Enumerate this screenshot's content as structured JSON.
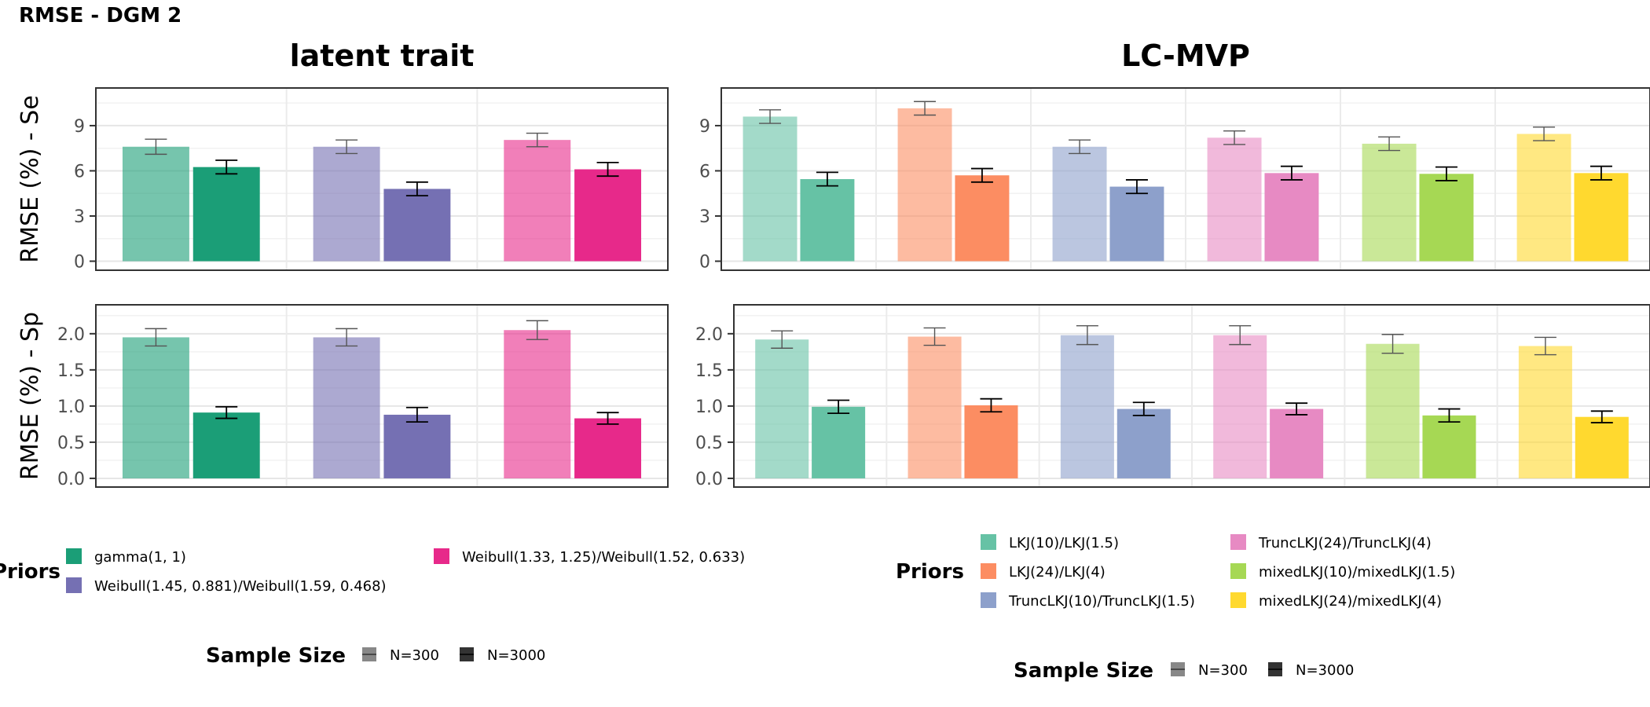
{
  "figure_title": "RMSE - DGM 2",
  "chart_data": [
    {
      "type": "bar",
      "title": "latent trait",
      "ylabel": "RMSE (%) - Se",
      "ylim": [
        -0.6,
        11.5
      ],
      "yticks": [
        "0",
        "3",
        "6",
        "9"
      ],
      "ytick_values": [
        0,
        3,
        6,
        9
      ],
      "series": [
        {
          "name": "gamma(1, 1) N=300",
          "prior": "gamma(1, 1)",
          "sample_size": "N=300",
          "color": "#1B9E77",
          "value": 7.6,
          "err": 0.5
        },
        {
          "name": "gamma(1, 1) N=3000",
          "prior": "gamma(1, 1)",
          "sample_size": "N=3000",
          "color": "#1B9E77",
          "value": 6.25,
          "err": 0.45
        },
        {
          "name": "Weibull(1.45, 0.881)/Weibull(1.59, 0.468) N=300",
          "prior": "Weibull(1.45, 0.881)/Weibull(1.59, 0.468)",
          "sample_size": "N=300",
          "color": "#7570B3",
          "value": 7.6,
          "err": 0.45
        },
        {
          "name": "Weibull(1.45, 0.881)/Weibull(1.59, 0.468) N=3000",
          "prior": "Weibull(1.45, 0.881)/Weibull(1.59, 0.468)",
          "sample_size": "N=3000",
          "color": "#7570B3",
          "value": 4.8,
          "err": 0.45
        },
        {
          "name": "Weibull(1.33, 1.25)/Weibull(1.52, 0.633) N=300",
          "prior": "Weibull(1.33, 1.25)/Weibull(1.52, 0.633)",
          "sample_size": "N=300",
          "color": "#E7298A",
          "value": 8.05,
          "err": 0.45
        },
        {
          "name": "Weibull(1.33, 1.25)/Weibull(1.52, 0.633) N=3000",
          "prior": "Weibull(1.33, 1.25)/Weibull(1.52, 0.633)",
          "sample_size": "N=3000",
          "color": "#E7298A",
          "value": 6.1,
          "err": 0.45
        }
      ]
    },
    {
      "type": "bar",
      "title": "LC-MVP",
      "ylabel": "",
      "ylim": [
        -0.6,
        11.5
      ],
      "yticks": [
        "0",
        "3",
        "6",
        "9"
      ],
      "ytick_values": [
        0,
        3,
        6,
        9
      ],
      "series": [
        {
          "name": "LKJ(10)/LKJ(1.5) N=300",
          "prior": "LKJ(10)/LKJ(1.5)",
          "sample_size": "N=300",
          "color": "#66C2A5",
          "value": 9.6,
          "err": 0.45
        },
        {
          "name": "LKJ(10)/LKJ(1.5) N=3000",
          "prior": "LKJ(10)/LKJ(1.5)",
          "sample_size": "N=3000",
          "color": "#66C2A5",
          "value": 5.45,
          "err": 0.45
        },
        {
          "name": "LKJ(24)/LKJ(4) N=300",
          "prior": "LKJ(24)/LKJ(4)",
          "sample_size": "N=300",
          "color": "#FC8D62",
          "value": 10.15,
          "err": 0.45
        },
        {
          "name": "LKJ(24)/LKJ(4) N=3000",
          "prior": "LKJ(24)/LKJ(4)",
          "sample_size": "N=3000",
          "color": "#FC8D62",
          "value": 5.7,
          "err": 0.45
        },
        {
          "name": "TruncLKJ(10)/TruncLKJ(1.5) N=300",
          "prior": "TruncLKJ(10)/TruncLKJ(1.5)",
          "sample_size": "N=300",
          "color": "#8DA0CB",
          "value": 7.6,
          "err": 0.45
        },
        {
          "name": "TruncLKJ(10)/TruncLKJ(1.5) N=3000",
          "prior": "TruncLKJ(10)/TruncLKJ(1.5)",
          "sample_size": "N=3000",
          "color": "#8DA0CB",
          "value": 4.95,
          "err": 0.45
        },
        {
          "name": "TruncLKJ(24)/TruncLKJ(4) N=300",
          "prior": "TruncLKJ(24)/TruncLKJ(4)",
          "sample_size": "N=300",
          "color": "#E78AC3",
          "value": 8.2,
          "err": 0.45
        },
        {
          "name": "TruncLKJ(24)/TruncLKJ(4) N=3000",
          "prior": "TruncLKJ(24)/TruncLKJ(4)",
          "sample_size": "N=3000",
          "color": "#E78AC3",
          "value": 5.85,
          "err": 0.45
        },
        {
          "name": "mixedLKJ(10)/mixedLKJ(1.5) N=300",
          "prior": "mixedLKJ(10)/mixedLKJ(1.5)",
          "sample_size": "N=300",
          "color": "#A6D854",
          "value": 7.8,
          "err": 0.45
        },
        {
          "name": "mixedLKJ(10)/mixedLKJ(1.5) N=3000",
          "prior": "mixedLKJ(10)/mixedLKJ(1.5)",
          "sample_size": "N=3000",
          "color": "#A6D854",
          "value": 5.8,
          "err": 0.45
        },
        {
          "name": "mixedLKJ(24)/mixedLKJ(4) N=300",
          "prior": "mixedLKJ(24)/mixedLKJ(4)",
          "sample_size": "N=300",
          "color": "#FFD92F",
          "value": 8.45,
          "err": 0.45
        },
        {
          "name": "mixedLKJ(24)/mixedLKJ(4) N=3000",
          "prior": "mixedLKJ(24)/mixedLKJ(4)",
          "sample_size": "N=3000",
          "color": "#FFD92F",
          "value": 5.85,
          "err": 0.45
        }
      ]
    },
    {
      "type": "bar",
      "title": "",
      "ylabel": "RMSE (%) - Sp",
      "ylim": [
        -0.12,
        2.4
      ],
      "yticks": [
        "0.0",
        "0.5",
        "1.0",
        "1.5",
        "2.0"
      ],
      "ytick_values": [
        0,
        0.5,
        1.0,
        1.5,
        2.0
      ],
      "series": [
        {
          "name": "gamma(1, 1) N=300",
          "prior": "gamma(1, 1)",
          "sample_size": "N=300",
          "color": "#1B9E77",
          "value": 1.95,
          "err": 0.12
        },
        {
          "name": "gamma(1, 1) N=3000",
          "prior": "gamma(1, 1)",
          "sample_size": "N=3000",
          "color": "#1B9E77",
          "value": 0.91,
          "err": 0.08
        },
        {
          "name": "Weibull(1.45, 0.881)/Weibull(1.59, 0.468) N=300",
          "prior": "Weibull(1.45, 0.881)/Weibull(1.59, 0.468)",
          "sample_size": "N=300",
          "color": "#7570B3",
          "value": 1.95,
          "err": 0.12
        },
        {
          "name": "Weibull(1.45, 0.881)/Weibull(1.59, 0.468) N=3000",
          "prior": "Weibull(1.45, 0.881)/Weibull(1.59, 0.468)",
          "sample_size": "N=3000",
          "color": "#7570B3",
          "value": 0.88,
          "err": 0.1
        },
        {
          "name": "Weibull(1.33, 1.25)/Weibull(1.52, 0.633) N=300",
          "prior": "Weibull(1.33, 1.25)/Weibull(1.52, 0.633)",
          "sample_size": "N=300",
          "color": "#E7298A",
          "value": 2.05,
          "err": 0.13
        },
        {
          "name": "Weibull(1.33, 1.25)/Weibull(1.52, 0.633) N=3000",
          "prior": "Weibull(1.33, 1.25)/Weibull(1.52, 0.633)",
          "sample_size": "N=3000",
          "color": "#E7298A",
          "value": 0.83,
          "err": 0.08
        }
      ]
    },
    {
      "type": "bar",
      "title": "",
      "ylabel": "",
      "ylim": [
        -0.12,
        2.4
      ],
      "yticks": [
        "0.0",
        "0.5",
        "1.0",
        "1.5",
        "2.0"
      ],
      "ytick_values": [
        0,
        0.5,
        1.0,
        1.5,
        2.0
      ],
      "series": [
        {
          "name": "LKJ(10)/LKJ(1.5) N=300",
          "prior": "LKJ(10)/LKJ(1.5)",
          "sample_size": "N=300",
          "color": "#66C2A5",
          "value": 1.92,
          "err": 0.12
        },
        {
          "name": "LKJ(10)/LKJ(1.5) N=3000",
          "prior": "LKJ(10)/LKJ(1.5)",
          "sample_size": "N=3000",
          "color": "#66C2A5",
          "value": 0.99,
          "err": 0.09
        },
        {
          "name": "LKJ(24)/LKJ(4) N=300",
          "prior": "LKJ(24)/LKJ(4)",
          "sample_size": "N=300",
          "color": "#FC8D62",
          "value": 1.96,
          "err": 0.12
        },
        {
          "name": "LKJ(24)/LKJ(4) N=3000",
          "prior": "LKJ(24)/LKJ(4)",
          "sample_size": "N=3000",
          "color": "#FC8D62",
          "value": 1.01,
          "err": 0.09
        },
        {
          "name": "TruncLKJ(10)/TruncLKJ(1.5) N=300",
          "prior": "TruncLKJ(10)/TruncLKJ(1.5)",
          "sample_size": "N=300",
          "color": "#8DA0CB",
          "value": 1.98,
          "err": 0.13
        },
        {
          "name": "TruncLKJ(10)/TruncLKJ(1.5) N=3000",
          "prior": "TruncLKJ(10)/TruncLKJ(1.5)",
          "sample_size": "N=3000",
          "color": "#8DA0CB",
          "value": 0.96,
          "err": 0.09
        },
        {
          "name": "TruncLKJ(24)/TruncLKJ(4) N=300",
          "prior": "TruncLKJ(24)/TruncLKJ(4)",
          "sample_size": "N=300",
          "color": "#E78AC3",
          "value": 1.98,
          "err": 0.13
        },
        {
          "name": "TruncLKJ(24)/TruncLKJ(4) N=3000",
          "prior": "TruncLKJ(24)/TruncLKJ(4)",
          "sample_size": "N=3000",
          "color": "#E78AC3",
          "value": 0.96,
          "err": 0.08
        },
        {
          "name": "mixedLKJ(10)/mixedLKJ(1.5) N=300",
          "prior": "mixedLKJ(10)/mixedLKJ(1.5)",
          "sample_size": "N=300",
          "color": "#A6D854",
          "value": 1.86,
          "err": 0.13
        },
        {
          "name": "mixedLKJ(10)/mixedLKJ(1.5) N=3000",
          "prior": "mixedLKJ(10)/mixedLKJ(1.5)",
          "sample_size": "N=3000",
          "color": "#A6D854",
          "value": 0.87,
          "err": 0.09
        },
        {
          "name": "mixedLKJ(24)/mixedLKJ(4) N=300",
          "prior": "mixedLKJ(24)/mixedLKJ(4)",
          "sample_size": "N=300",
          "color": "#FFD92F",
          "value": 1.83,
          "err": 0.12
        },
        {
          "name": "mixedLKJ(24)/mixedLKJ(4) N=3000",
          "prior": "mixedLKJ(24)/mixedLKJ(4)",
          "sample_size": "N=3000",
          "color": "#FFD92F",
          "value": 0.85,
          "err": 0.08
        }
      ]
    }
  ],
  "legend_left": {
    "title": "Priors",
    "items": [
      {
        "label": "gamma(1, 1)",
        "color": "#1B9E77"
      },
      {
        "label": "Weibull(1.45, 0.881)/Weibull(1.59, 0.468)",
        "color": "#7570B3"
      },
      {
        "label": "Weibull(1.33, 1.25)/Weibull(1.52, 0.633)",
        "color": "#E7298A"
      }
    ],
    "sample_title": "Sample Size",
    "sample_items": [
      "N=300",
      "N=3000"
    ]
  },
  "legend_right": {
    "title": "Priors",
    "items": [
      {
        "label": "LKJ(10)/LKJ(1.5)",
        "color": "#66C2A5"
      },
      {
        "label": "LKJ(24)/LKJ(4)",
        "color": "#FC8D62"
      },
      {
        "label": "TruncLKJ(10)/TruncLKJ(1.5)",
        "color": "#8DA0CB"
      },
      {
        "label": "TruncLKJ(24)/TruncLKJ(4)",
        "color": "#E78AC3"
      },
      {
        "label": "mixedLKJ(10)/mixedLKJ(1.5)",
        "color": "#A6D854"
      },
      {
        "label": "mixedLKJ(24)/mixedLKJ(4)",
        "color": "#FFD92F"
      }
    ],
    "sample_title": "Sample Size",
    "sample_items": [
      "N=300",
      "N=3000"
    ]
  }
}
